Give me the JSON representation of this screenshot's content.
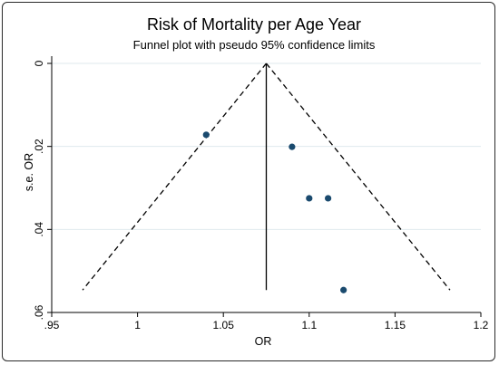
{
  "chart_data": {
    "type": "scatter",
    "title": "Risk of Mortality per Age Year",
    "subtitle": "Funnel plot with pseudo 95% confidence limits",
    "xlabel": "OR",
    "ylabel": "s.e. OR",
    "xlim": [
      0.95,
      1.2
    ],
    "ylim": [
      0,
      0.06
    ],
    "y_reversed": true,
    "x_ticks": [
      0.95,
      1.0,
      1.05,
      1.1,
      1.15,
      1.2
    ],
    "x_tick_labels": [
      ".95",
      "1",
      "1.05",
      "1.1",
      "1.15",
      "1.2"
    ],
    "y_ticks": [
      0,
      0.02,
      0.04,
      0.06
    ],
    "y_tick_labels": [
      "0",
      ".02",
      ".04",
      ".06"
    ],
    "grid": true,
    "points": [
      {
        "x": 1.04,
        "y": 0.0172
      },
      {
        "x": 1.09,
        "y": 0.0201
      },
      {
        "x": 1.1,
        "y": 0.0325
      },
      {
        "x": 1.111,
        "y": 0.0325
      },
      {
        "x": 1.12,
        "y": 0.0546
      }
    ],
    "pooled_estimate": 1.075,
    "pooled_line_se_max": 0.0546,
    "confidence_limit_se_max": 0.0546,
    "colors": {
      "points": "#1a4a6e",
      "lines": "#000000",
      "grid": "#dfe9ee"
    }
  }
}
